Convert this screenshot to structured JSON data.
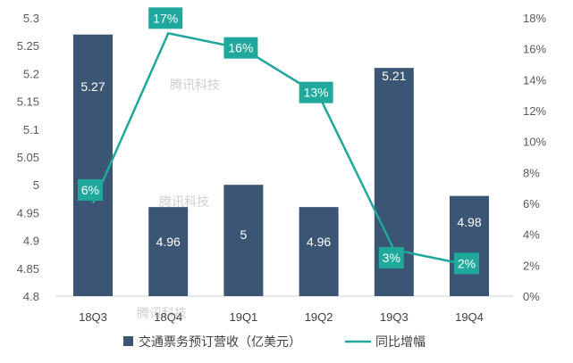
{
  "chart_data": {
    "type": "bar+line",
    "categories": [
      "18Q3",
      "18Q4",
      "19Q1",
      "19Q2",
      "19Q3",
      "19Q4"
    ],
    "series": [
      {
        "name": "交通票务预订营收（亿美元）",
        "type": "bar",
        "axis": "left",
        "values": [
          5.27,
          4.96,
          5,
          4.96,
          5.21,
          4.98
        ],
        "labels": [
          "5.27",
          "4.96",
          "5",
          "4.96",
          "5.21",
          "4.98"
        ]
      },
      {
        "name": "同比增幅",
        "type": "line",
        "axis": "right",
        "values": [
          6,
          17,
          16,
          13,
          3,
          2
        ],
        "labels": [
          "6%",
          "17%",
          "16%",
          "13%",
          "3%",
          "2%"
        ]
      }
    ],
    "left_axis": {
      "ylim": [
        4.8,
        5.3
      ],
      "ticks": [
        "4.8",
        "4.85",
        "4.9",
        "4.95",
        "5",
        "5.05",
        "5.1",
        "5.15",
        "5.2",
        "5.25",
        "5.3"
      ]
    },
    "right_axis": {
      "ylim": [
        0,
        18
      ],
      "ticks": [
        "0%",
        "2%",
        "4%",
        "6%",
        "8%",
        "10%",
        "12%",
        "14%",
        "16%",
        "18%"
      ]
    },
    "legend_position": "bottom",
    "grid": false,
    "colors": {
      "bar": "#3b5575",
      "line": "#1fa89b",
      "label_box": "#1fa89b"
    }
  },
  "watermark": "腾讯科技"
}
